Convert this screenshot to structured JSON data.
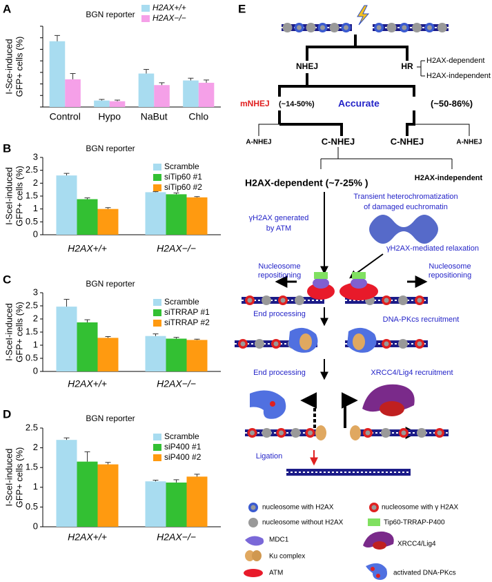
{
  "chart_data": [
    {
      "panel": "A",
      "type": "bar",
      "title": "BGN reporter",
      "ylabel": [
        "I-Sce-induced",
        "GFP+ cells (%)"
      ],
      "categories": [
        "Control",
        "Hypo",
        "NaBut",
        "Chlo"
      ],
      "series": [
        {
          "name": "H2AX+/+",
          "color": "#a8dcf0",
          "values": [
            2.85,
            0.28,
            1.45,
            1.15
          ],
          "errors": [
            0.25,
            0.05,
            0.18,
            0.1
          ]
        },
        {
          "name": "H2AX−/−",
          "color": "#f5a0e8",
          "values": [
            1.2,
            0.25,
            0.95,
            1.05
          ],
          "errors": [
            0.25,
            0.05,
            0.1,
            0.12
          ]
        }
      ],
      "ylim": [
        0,
        3.5
      ],
      "yticks": [
        0,
        0.5,
        1,
        1.5,
        2,
        2.5,
        3,
        3.5
      ],
      "tick_labels": false,
      "legend": "upper right"
    },
    {
      "panel": "B",
      "type": "bar",
      "title": "BGN reporter",
      "ylabel": [
        "I-SceI-induced",
        "GFP+ cells (%)"
      ],
      "categories": [
        "H2AX+/+",
        "H2AX−/−"
      ],
      "series": [
        {
          "name": "Scramble",
          "color": "#a8dcf0",
          "values": [
            2.3,
            1.65
          ],
          "errors": [
            0.08,
            0.02
          ]
        },
        {
          "name": "siTip60 #1",
          "color": "#33c033",
          "values": [
            1.38,
            1.57
          ],
          "errors": [
            0.05,
            0.05
          ]
        },
        {
          "name": "siTip60 #2",
          "color": "#ff9a10",
          "values": [
            1.0,
            1.45
          ],
          "errors": [
            0.05,
            0.03
          ]
        }
      ],
      "ylim": [
        0,
        3
      ],
      "yticks": [
        0,
        0.5,
        1,
        1.5,
        2,
        2.5,
        3
      ],
      "tick_labels": true,
      "legend": "upper right"
    },
    {
      "panel": "C",
      "type": "bar",
      "title": "BGN reporter",
      "ylabel": [
        "I-SceI-induced",
        "GFP+ cells (%)"
      ],
      "categories": [
        "H2AX+/+",
        "H2AX−/−"
      ],
      "series": [
        {
          "name": "Scramble",
          "color": "#a8dcf0",
          "values": [
            2.47,
            1.35
          ],
          "errors": [
            0.28,
            0.08
          ]
        },
        {
          "name": "siTRRAP #1",
          "color": "#33c033",
          "values": [
            1.87,
            1.25
          ],
          "errors": [
            0.1,
            0.05
          ]
        },
        {
          "name": "siTRRAP #2",
          "color": "#ff9a10",
          "values": [
            1.28,
            1.2
          ],
          "errors": [
            0.05,
            0.03
          ]
        }
      ],
      "ylim": [
        0,
        3
      ],
      "yticks": [
        0,
        0.5,
        1,
        1.5,
        2,
        2.5,
        3
      ],
      "tick_labels": true,
      "legend": "upper right"
    },
    {
      "panel": "D",
      "type": "bar",
      "title": "BGN reporter",
      "ylabel": [
        "I-SceI-induced",
        "GFP+ cells (%)"
      ],
      "categories": [
        "H2AX+/+",
        "H2AX−/−"
      ],
      "series": [
        {
          "name": "Scramble",
          "color": "#a8dcf0",
          "values": [
            2.2,
            1.15
          ],
          "errors": [
            0.05,
            0.03
          ]
        },
        {
          "name": "siP400 #1",
          "color": "#33c033",
          "values": [
            1.65,
            1.12
          ],
          "errors": [
            0.25,
            0.07
          ]
        },
        {
          "name": "siP400 #2",
          "color": "#ff9a10",
          "values": [
            1.58,
            1.27
          ],
          "errors": [
            0.05,
            0.06
          ]
        }
      ],
      "ylim": [
        0,
        2.5
      ],
      "yticks": [
        0,
        0.5,
        1,
        1.5,
        2,
        2.5
      ],
      "tick_labels": true,
      "legend": "upper right"
    }
  ],
  "diagram": {
    "panel": "E",
    "labels": [
      "NHEJ",
      "HR",
      "H2AX-dependent",
      "H2AX-independent",
      "mNHEJ",
      "(~14-50%)",
      "Accurate",
      "(~50-86%)",
      "A-NHEJ",
      "C-NHEJ",
      "C-NHEJ",
      "A-NHEJ",
      "H2AX-dependent (~7-25% )",
      "H2AX-independent",
      "Transient heterochromatization",
      "of damaged euchromatin",
      "γH2AX generated",
      "by ATM",
      "γH2AX-mediated relaxation",
      "Nucleosome",
      "repositioning",
      "Nucleosome",
      "repositioning",
      "End processing",
      "DNA-PKcs recruitment",
      "End processing",
      "XRCC4/Lig4 recruitment",
      "Ligation"
    ],
    "legend": [
      "nucleosome with H2AX",
      "nucleosome with γ H2AX",
      "nucleosome without H2AX",
      "Tip60-TRRAP-P400",
      "MDC1",
      "XRCC4/Lig4",
      "Ku complex",
      "activated DNA-PKcs",
      "ATM"
    ]
  }
}
